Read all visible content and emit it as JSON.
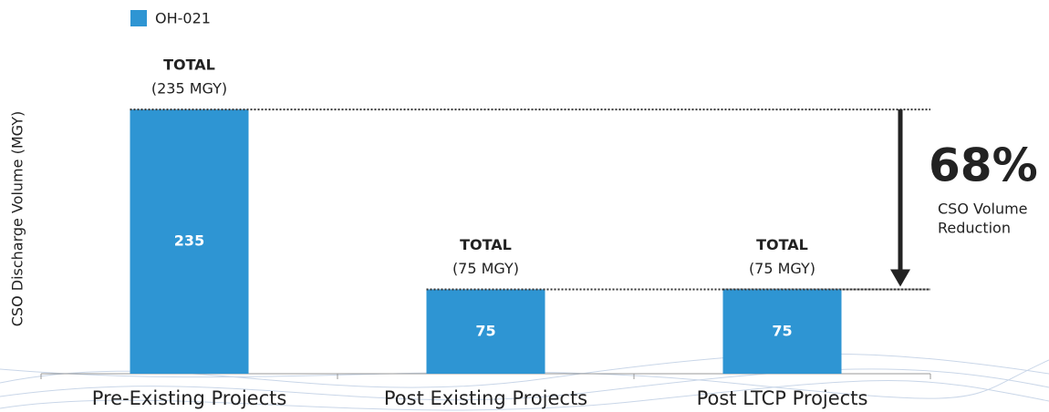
{
  "chart_data": {
    "type": "bar",
    "y_label": "CSO Discharge Volume (MGY)",
    "categories": [
      "Pre-Existing Projects",
      "Post Existing Projects",
      "Post LTCP Projects"
    ],
    "series": [
      {
        "name": "OH-021",
        "color": "#2e95d3",
        "values": [
          235,
          75,
          75
        ]
      }
    ],
    "ylim": [
      0,
      300
    ],
    "total_labels": [
      {
        "heading": "TOTAL",
        "text": "(235 MGY)"
      },
      {
        "heading": "TOTAL",
        "text": "(75 MGY)"
      },
      {
        "heading": "TOTAL",
        "text": "(75 MGY)"
      }
    ],
    "annotation": {
      "value": "68%",
      "lines": [
        "CSO Volume",
        "Reduction"
      ]
    }
  }
}
